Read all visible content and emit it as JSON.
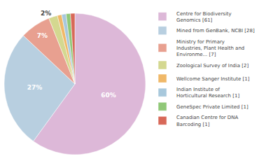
{
  "chart_data": {
    "type": "pie",
    "categories": [
      "Centre for Biodiversity\nGenomics [61]",
      "Mined from GenBank, NCBI [28]",
      "Ministry for Primary\nIndustries, Plant Health and\nEnvironme... [7]",
      "Zoological Survey of India [2]",
      "Wellcome Sanger Institute [1]",
      "Indian Institute of\nHorticultural Research [1]",
      "GeneSpec Private Limited [1]",
      "Canadian Centre for DNA\nBarcoding [1]"
    ],
    "values": [
      60,
      27,
      7,
      2,
      1,
      1,
      1,
      1
    ],
    "value_labels": [
      "60%",
      "27%",
      "7%",
      "2%",
      null,
      null,
      null,
      null
    ],
    "colors": [
      "#ddb8d8",
      "#b8cfe0",
      "#e8a090",
      "#d4d890",
      "#f0b868",
      "#a8c8dc",
      "#90c878",
      "#d86858"
    ],
    "data_labels": true,
    "legend": "right"
  }
}
